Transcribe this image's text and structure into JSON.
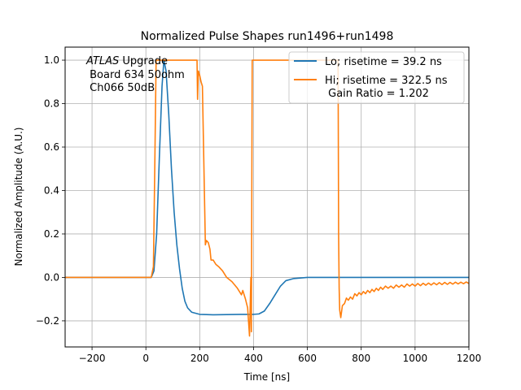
{
  "chart_data": {
    "type": "line",
    "title": "Normalized Pulse Shapes run1496+run1498",
    "xlabel": "Time [ns]",
    "ylabel": "Normalized Amplitude (A.U.)",
    "xlim": [
      -300,
      1200
    ],
    "ylim": [
      -0.32,
      1.06
    ],
    "x_ticks": [
      -200,
      0,
      200,
      400,
      600,
      800,
      1000,
      1200
    ],
    "x_tick_labels": [
      "−200",
      "0",
      "200",
      "400",
      "600",
      "800",
      "1000",
      "1200"
    ],
    "y_ticks": [
      -0.2,
      0.0,
      0.2,
      0.4,
      0.6,
      0.8,
      1.0
    ],
    "y_tick_labels": [
      "−0.2",
      "0.0",
      "0.2",
      "0.4",
      "0.6",
      "0.8",
      "1.0"
    ],
    "grid": true,
    "legend_position": "top-right",
    "annotation": {
      "italic": "ATLAS",
      "line1_rest": " Upgrade",
      "line2": " Board 634 50ohm",
      "line3": " Ch066 50dB"
    },
    "series": [
      {
        "name": "Lo; risetime = 39.2 ns",
        "color": "#1f77b4",
        "points": [
          [
            -300,
            0.0
          ],
          [
            20,
            0.0
          ],
          [
            30,
            0.03
          ],
          [
            40,
            0.2
          ],
          [
            50,
            0.55
          ],
          [
            60,
            0.88
          ],
          [
            67,
            1.0
          ],
          [
            75,
            0.95
          ],
          [
            85,
            0.75
          ],
          [
            95,
            0.5
          ],
          [
            105,
            0.3
          ],
          [
            115,
            0.15
          ],
          [
            125,
            0.04
          ],
          [
            135,
            -0.05
          ],
          [
            145,
            -0.11
          ],
          [
            155,
            -0.14
          ],
          [
            170,
            -0.16
          ],
          [
            200,
            -0.17
          ],
          [
            250,
            -0.172
          ],
          [
            300,
            -0.171
          ],
          [
            350,
            -0.17
          ],
          [
            400,
            -0.17
          ],
          [
            420,
            -0.168
          ],
          [
            440,
            -0.155
          ],
          [
            460,
            -0.12
          ],
          [
            480,
            -0.08
          ],
          [
            500,
            -0.04
          ],
          [
            520,
            -0.015
          ],
          [
            550,
            -0.005
          ],
          [
            600,
            0.0
          ],
          [
            1200,
            0.0
          ]
        ]
      },
      {
        "name": "Hi; risetime = 322.5 ns",
        "name_line2": " Gain Ratio = 1.202",
        "color": "#ff7f0e",
        "points": [
          [
            -300,
            0.0
          ],
          [
            20,
            0.0
          ],
          [
            28,
            0.05
          ],
          [
            33,
            0.5
          ],
          [
            38,
            1.0
          ],
          [
            190,
            1.0
          ],
          [
            192,
            0.82
          ],
          [
            195,
            0.95
          ],
          [
            200,
            0.93
          ],
          [
            205,
            0.9
          ],
          [
            210,
            0.88
          ],
          [
            215,
            0.55
          ],
          [
            218,
            0.35
          ],
          [
            221,
            0.15
          ],
          [
            225,
            0.17
          ],
          [
            232,
            0.16
          ],
          [
            238,
            0.13
          ],
          [
            242,
            0.08
          ],
          [
            250,
            0.08
          ],
          [
            260,
            0.06
          ],
          [
            270,
            0.05
          ],
          [
            285,
            0.03
          ],
          [
            300,
            0.0
          ],
          [
            320,
            -0.02
          ],
          [
            340,
            -0.05
          ],
          [
            355,
            -0.08
          ],
          [
            360,
            -0.06
          ],
          [
            370,
            -0.1
          ],
          [
            378,
            -0.14
          ],
          [
            385,
            -0.27
          ],
          [
            390,
            0.0
          ],
          [
            392,
            -0.25
          ],
          [
            395,
            1.0
          ],
          [
            714,
            1.0
          ],
          [
            716,
            0.2
          ],
          [
            718,
            -0.05
          ],
          [
            720,
            -0.15
          ],
          [
            724,
            -0.185
          ],
          [
            730,
            -0.13
          ],
          [
            738,
            -0.12
          ],
          [
            745,
            -0.095
          ],
          [
            752,
            -0.105
          ],
          [
            760,
            -0.09
          ],
          [
            768,
            -0.1
          ],
          [
            776,
            -0.075
          ],
          [
            784,
            -0.085
          ],
          [
            792,
            -0.07
          ],
          [
            800,
            -0.08
          ],
          [
            808,
            -0.065
          ],
          [
            816,
            -0.075
          ],
          [
            824,
            -0.06
          ],
          [
            832,
            -0.07
          ],
          [
            840,
            -0.055
          ],
          [
            848,
            -0.065
          ],
          [
            856,
            -0.05
          ],
          [
            864,
            -0.06
          ],
          [
            872,
            -0.045
          ],
          [
            880,
            -0.055
          ],
          [
            890,
            -0.04
          ],
          [
            900,
            -0.05
          ],
          [
            910,
            -0.04
          ],
          [
            920,
            -0.05
          ],
          [
            930,
            -0.035
          ],
          [
            940,
            -0.045
          ],
          [
            950,
            -0.035
          ],
          [
            960,
            -0.045
          ],
          [
            970,
            -0.03
          ],
          [
            980,
            -0.04
          ],
          [
            990,
            -0.03
          ],
          [
            1000,
            -0.04
          ],
          [
            1010,
            -0.028
          ],
          [
            1020,
            -0.038
          ],
          [
            1030,
            -0.027
          ],
          [
            1040,
            -0.036
          ],
          [
            1050,
            -0.026
          ],
          [
            1060,
            -0.035
          ],
          [
            1070,
            -0.025
          ],
          [
            1080,
            -0.034
          ],
          [
            1090,
            -0.024
          ],
          [
            1100,
            -0.033
          ],
          [
            1110,
            -0.023
          ],
          [
            1120,
            -0.032
          ],
          [
            1130,
            -0.023
          ],
          [
            1140,
            -0.031
          ],
          [
            1150,
            -0.022
          ],
          [
            1160,
            -0.03
          ],
          [
            1170,
            -0.022
          ],
          [
            1180,
            -0.029
          ],
          [
            1190,
            -0.021
          ],
          [
            1200,
            -0.028
          ]
        ]
      }
    ]
  }
}
